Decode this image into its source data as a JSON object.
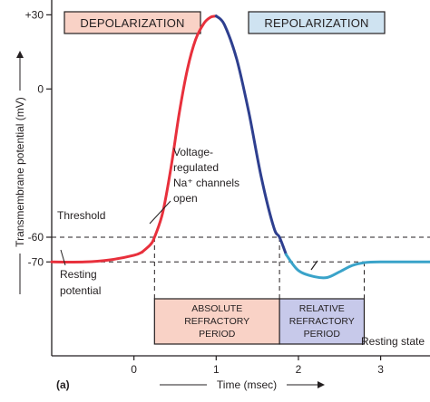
{
  "chart_data": {
    "type": "line",
    "panel_label": "(a)",
    "ylabel": "Transmembrane potential (mV)",
    "xlabel": "Time (msec)",
    "xlim": [
      -1.0,
      3.6
    ],
    "ylim": [
      -108,
      36
    ],
    "y_ticks": [
      {
        "value": 30,
        "label": "+30"
      },
      {
        "value": 0,
        "label": "0"
      },
      {
        "value": -60,
        "label": "-60"
      },
      {
        "value": -70,
        "label": "-70"
      }
    ],
    "x_ticks": [
      {
        "value": 0,
        "label": "0"
      },
      {
        "value": 1,
        "label": "1"
      },
      {
        "value": 2,
        "label": "2"
      },
      {
        "value": 3,
        "label": "3"
      }
    ],
    "colors": {
      "depolarization_line": "#e8303c",
      "repolarization_line": "#2e3f8f",
      "hyperpolarization_line": "#3aa3c9",
      "resting_line": "#e8303c",
      "depolarization_box": "#f9d2c6",
      "repolarization_box": "#cfe3f1",
      "absolute_period_fill": "#f9d2c6",
      "relative_period_fill": "#c7c9ea",
      "phase_box_border": "#231f20"
    },
    "series": [
      {
        "segment": "resting",
        "x": [
          -1.0,
          -0.6,
          -0.3,
          0.0,
          0.1
        ],
        "y": [
          -70,
          -70,
          -69.2,
          -67.3,
          -66.0
        ]
      },
      {
        "segment": "depolarization",
        "x": [
          0.1,
          0.2,
          0.25,
          0.35,
          0.45,
          0.55,
          0.65,
          0.75,
          0.85,
          0.93,
          1.0
        ],
        "y": [
          -66.0,
          -63.0,
          -60.0,
          -50.0,
          -32.0,
          -10.0,
          8.0,
          20.0,
          26.5,
          29.0,
          29.5
        ]
      },
      {
        "segment": "repolarization",
        "x": [
          1.0,
          1.1,
          1.25,
          1.4,
          1.55,
          1.7,
          1.77,
          1.85
        ],
        "y": [
          29.5,
          26.0,
          12.0,
          -10.0,
          -36.0,
          -56.0,
          -60.0,
          -67.0
        ]
      },
      {
        "segment": "hyperpolarization",
        "x": [
          1.85,
          2.0,
          2.2,
          2.35,
          2.5,
          2.65,
          2.8,
          3.0,
          3.6
        ],
        "y": [
          -67.0,
          -73.5,
          -76.0,
          -76.3,
          -74.0,
          -71.5,
          -70.3,
          -70.0,
          -70.0
        ]
      }
    ],
    "threshold_value": -60,
    "resting_value": -70,
    "phases": [
      {
        "label": "DEPOLARIZATION"
      },
      {
        "label": "REPOLARIZATION"
      }
    ],
    "refractory_periods": [
      {
        "label_lines": [
          "ABSOLUTE",
          "REFRACTORY",
          "PERIOD"
        ],
        "start": 0.25,
        "end": 1.77
      },
      {
        "label_lines": [
          "RELATIVE",
          "REFRACTORY",
          "PERIOD"
        ],
        "start": 1.77,
        "end": 2.8
      }
    ],
    "annotations": {
      "threshold": "Threshold",
      "resting_lines": [
        "Resting",
        "potential"
      ],
      "channels_lines": [
        "Voltage-",
        "regulated",
        "Na⁺ channels",
        "open"
      ],
      "resting_state": "Resting state"
    },
    "grid": false
  }
}
